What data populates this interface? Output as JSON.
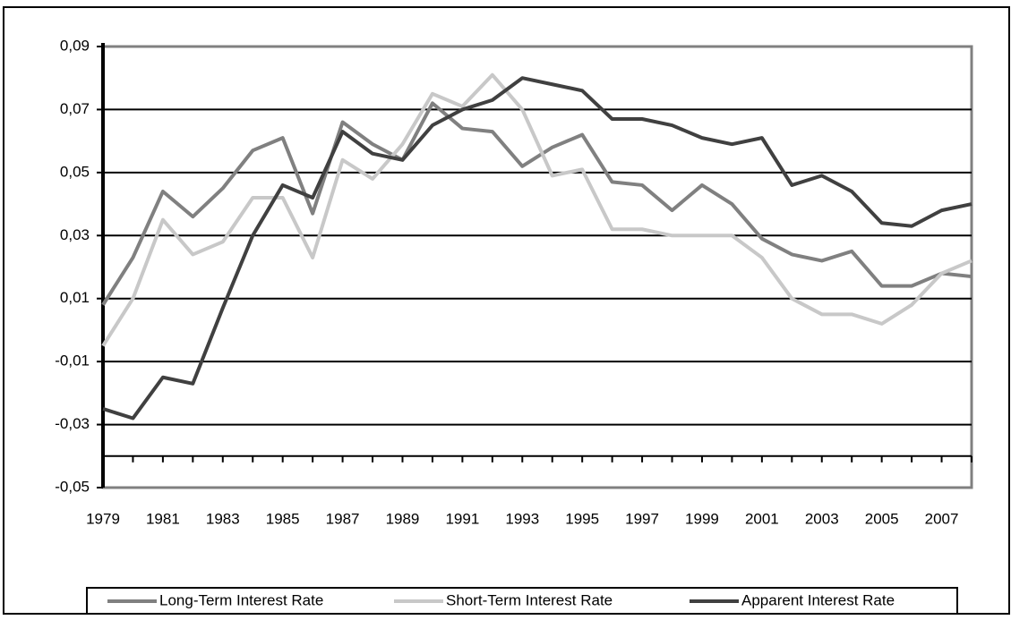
{
  "chart_data": {
    "type": "line",
    "x": [
      1979,
      1980,
      1981,
      1982,
      1983,
      1984,
      1985,
      1986,
      1987,
      1988,
      1989,
      1990,
      1991,
      1992,
      1993,
      1994,
      1995,
      1996,
      1997,
      1998,
      1999,
      2000,
      2001,
      2002,
      2003,
      2004,
      2005,
      2006,
      2007,
      2008
    ],
    "series": [
      {
        "name": "Long-Term Interest Rate",
        "color": "#808080",
        "values": [
          0.008,
          0.023,
          0.044,
          0.036,
          0.045,
          0.057,
          0.061,
          0.037,
          0.066,
          0.059,
          0.054,
          0.072,
          0.064,
          0.063,
          0.052,
          0.058,
          0.062,
          0.047,
          0.046,
          0.038,
          0.046,
          0.04,
          0.029,
          0.024,
          0.022,
          0.025,
          0.014,
          0.014,
          0.018,
          0.017
        ]
      },
      {
        "name": "Short-Term Interest Rate",
        "color": "#c8c8c8",
        "values": [
          -0.005,
          0.01,
          0.035,
          0.024,
          0.028,
          0.042,
          0.042,
          0.023,
          0.054,
          0.048,
          0.059,
          0.075,
          0.071,
          0.081,
          0.07,
          0.049,
          0.051,
          0.032,
          0.032,
          0.03,
          0.03,
          0.03,
          0.023,
          0.01,
          0.005,
          0.005,
          0.002,
          0.008,
          0.018,
          0.022
        ]
      },
      {
        "name": "Apparent Interest Rate",
        "color": "#404040",
        "values": [
          -0.025,
          -0.028,
          -0.015,
          -0.017,
          0.007,
          0.03,
          0.046,
          0.042,
          0.063,
          0.056,
          0.054,
          0.065,
          0.07,
          0.073,
          0.08,
          0.078,
          0.076,
          0.067,
          0.067,
          0.065,
          0.061,
          0.059,
          0.061,
          0.046,
          0.049,
          0.044,
          0.034,
          0.033,
          0.038,
          0.04
        ]
      }
    ],
    "xlim": [
      1979,
      2008
    ],
    "xticks": [
      1979,
      1981,
      1983,
      1985,
      1987,
      1989,
      1991,
      1993,
      1995,
      1997,
      1999,
      2001,
      2003,
      2005,
      2007
    ],
    "ylim": [
      -0.05,
      0.09
    ],
    "yticks": [
      {
        "value": 0.09,
        "label": "0,09"
      },
      {
        "value": 0.07,
        "label": "0,07"
      },
      {
        "value": 0.05,
        "label": "0,05"
      },
      {
        "value": 0.03,
        "label": "0,03"
      },
      {
        "value": 0.01,
        "label": "0,01"
      },
      {
        "value": -0.01,
        "label": "-0,01"
      },
      {
        "value": -0.03,
        "label": "-0,03"
      },
      {
        "value": -0.05,
        "label": "-0,05"
      }
    ],
    "x_axis_at": -0.04,
    "grid": true,
    "legend": "bottom"
  }
}
